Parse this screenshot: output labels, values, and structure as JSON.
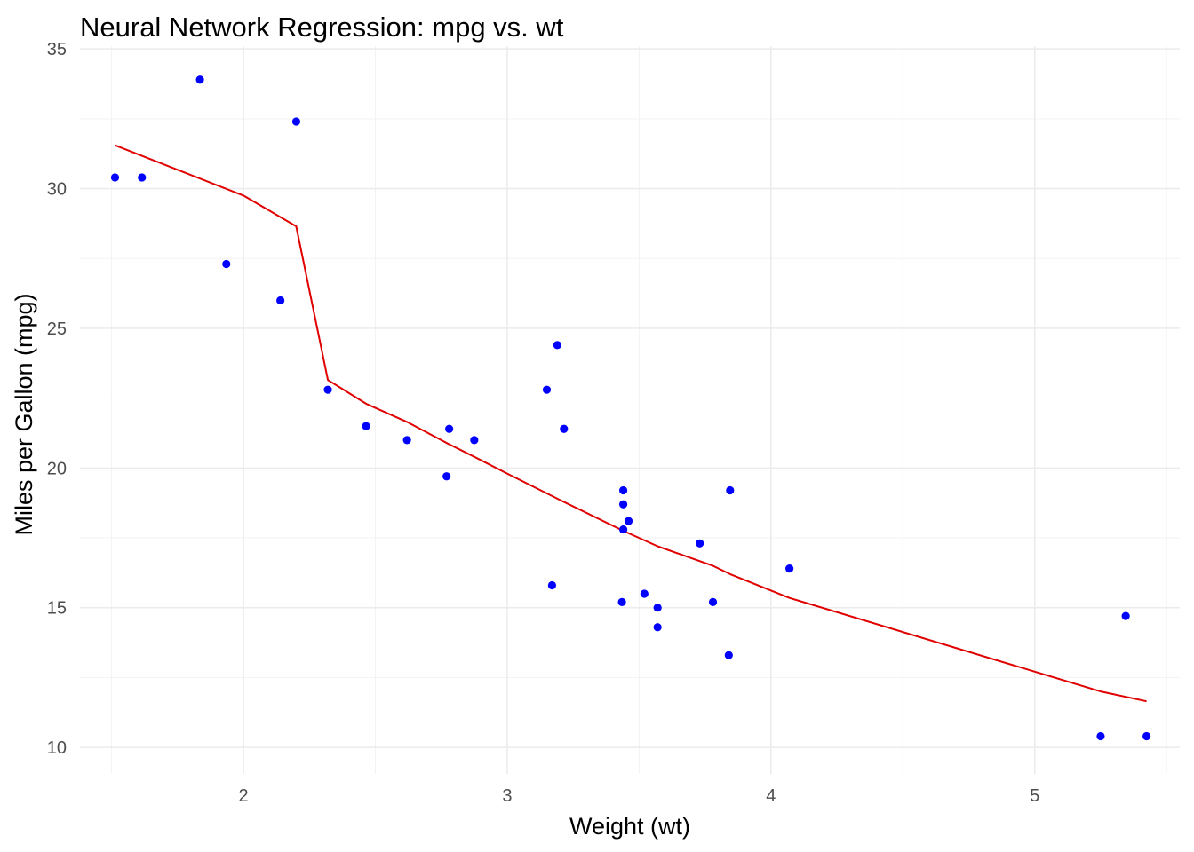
{
  "chart_data": {
    "type": "scatter",
    "title": "Neural Network Regression: mpg vs. wt",
    "xlabel": "Weight (wt)",
    "ylabel": "Miles per Gallon (mpg)",
    "xlim": [
      1.38,
      5.55
    ],
    "ylim": [
      9.05,
      35.1
    ],
    "x_ticks": [
      2,
      3,
      4,
      5
    ],
    "x_minor_ticks": [
      1.5,
      2.5,
      3.5,
      4.5,
      5.5
    ],
    "y_ticks": [
      10,
      15,
      20,
      25,
      30,
      35
    ],
    "y_minor_ticks": [
      12.5,
      17.5,
      22.5,
      27.5,
      32.5
    ],
    "grid": true,
    "legend": "none",
    "point_color": "#0000ff",
    "line_color": "#e00000",
    "series": [
      {
        "kind": "points",
        "points": [
          {
            "x": 2.62,
            "y": 21.0
          },
          {
            "x": 2.875,
            "y": 21.0
          },
          {
            "x": 2.32,
            "y": 22.8
          },
          {
            "x": 3.215,
            "y": 21.4
          },
          {
            "x": 3.44,
            "y": 18.7
          },
          {
            "x": 3.46,
            "y": 18.1
          },
          {
            "x": 3.57,
            "y": 14.3
          },
          {
            "x": 3.19,
            "y": 24.4
          },
          {
            "x": 3.15,
            "y": 22.8
          },
          {
            "x": 3.44,
            "y": 19.2
          },
          {
            "x": 3.44,
            "y": 17.8
          },
          {
            "x": 4.07,
            "y": 16.4
          },
          {
            "x": 3.73,
            "y": 17.3
          },
          {
            "x": 3.78,
            "y": 15.2
          },
          {
            "x": 5.25,
            "y": 10.4
          },
          {
            "x": 5.424,
            "y": 10.4
          },
          {
            "x": 5.345,
            "y": 14.7
          },
          {
            "x": 2.2,
            "y": 32.4
          },
          {
            "x": 1.615,
            "y": 30.4
          },
          {
            "x": 1.835,
            "y": 33.9
          },
          {
            "x": 2.465,
            "y": 21.5
          },
          {
            "x": 3.52,
            "y": 15.5
          },
          {
            "x": 3.435,
            "y": 15.2
          },
          {
            "x": 3.84,
            "y": 13.3
          },
          {
            "x": 3.845,
            "y": 19.2
          },
          {
            "x": 1.935,
            "y": 27.3
          },
          {
            "x": 2.14,
            "y": 26.0
          },
          {
            "x": 1.513,
            "y": 30.4
          },
          {
            "x": 3.17,
            "y": 15.8
          },
          {
            "x": 2.77,
            "y": 19.7
          },
          {
            "x": 3.57,
            "y": 15.0
          },
          {
            "x": 2.78,
            "y": 21.4
          }
        ]
      },
      {
        "kind": "line",
        "points": [
          {
            "x": 1.513,
            "y": 31.55
          },
          {
            "x": 2.0,
            "y": 29.75
          },
          {
            "x": 2.2,
            "y": 28.65
          },
          {
            "x": 2.32,
            "y": 23.15
          },
          {
            "x": 2.465,
            "y": 22.3
          },
          {
            "x": 2.62,
            "y": 21.65
          },
          {
            "x": 2.78,
            "y": 20.85
          },
          {
            "x": 2.875,
            "y": 20.4
          },
          {
            "x": 3.0,
            "y": 19.8
          },
          {
            "x": 3.19,
            "y": 18.9
          },
          {
            "x": 3.44,
            "y": 17.75
          },
          {
            "x": 3.57,
            "y": 17.2
          },
          {
            "x": 3.78,
            "y": 16.5
          },
          {
            "x": 3.845,
            "y": 16.2
          },
          {
            "x": 4.07,
            "y": 15.35
          },
          {
            "x": 5.25,
            "y": 12.0
          },
          {
            "x": 5.424,
            "y": 11.65
          }
        ]
      }
    ]
  }
}
